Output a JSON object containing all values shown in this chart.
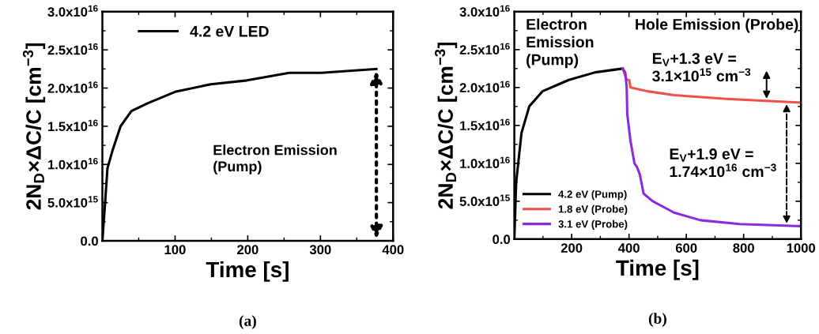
{
  "chart_data": [
    {
      "type": "line",
      "title": "(a)",
      "xlabel": "Time [s]",
      "ylabel": "2N$_{D}$×ΔC/C [cm$^{−3}$]",
      "xlim": [
        0,
        400
      ],
      "xticks": [
        100,
        200,
        300,
        400
      ],
      "ylim": [
        0,
        3e+16
      ],
      "yticks": [
        {
          "value": 0,
          "label": "0.0"
        },
        {
          "value": 5000000000000000.0,
          "label": "5.0x10$^{15}$"
        },
        {
          "value": 1e+16,
          "label": "1.0x10$^{16}$"
        },
        {
          "value": 1.5e+16,
          "label": "1.5x10$^{16}$"
        },
        {
          "value": 2e+16,
          "label": "2.0x10$^{16}$"
        },
        {
          "value": 2.5e+16,
          "label": "2.5x10$^{16}$"
        },
        {
          "value": 3e+16,
          "label": "3.0x10$^{16}$"
        }
      ],
      "legend": "top",
      "grid": false,
      "marker": "none",
      "line_style": "solid",
      "annotations": [
        "Electron Emission\n(Pump)"
      ],
      "series": [
        {
          "name": "4.2 eV LED",
          "color": "#000000",
          "x": [
            0,
            3.6,
            7,
            14.5,
            25,
            40,
            62,
            100,
            149,
            199,
            257,
            301,
            377
          ],
          "values": [
            0,
            4800000000000000.0,
            9500000000000000.0,
            1.2e+16,
            1.5e+16,
            1.7e+16,
            1.8e+16,
            1.95e+16,
            2.05e+16,
            2.1e+16,
            2.2e+16,
            2.2e+16,
            2.25e+16
          ]
        }
      ]
    },
    {
      "type": "line",
      "title": "(b)",
      "xlabel": "Time [s]",
      "ylabel": "2N$_{D}$×ΔC/C [cm$^{−3}$]",
      "xlim": [
        0,
        1000
      ],
      "xticks": [
        200,
        400,
        600,
        800,
        1000
      ],
      "ylim": [
        0,
        3e+16
      ],
      "yticks": [
        {
          "value": 0,
          "label": "0.0"
        },
        {
          "value": 5000000000000000.0,
          "label": "5.0x10$^{15}$"
        },
        {
          "value": 1e+16,
          "label": "1.0x10$^{16}$"
        },
        {
          "value": 1.5e+16,
          "label": "1.5x10$^{16}$"
        },
        {
          "value": 2e+16,
          "label": "2.0x10$^{16}$"
        },
        {
          "value": 2.5e+16,
          "label": "2.5x10$^{16}$"
        },
        {
          "value": 3e+16,
          "label": "3.0x10$^{16}$"
        }
      ],
      "legend": "bottom left",
      "grid": false,
      "marker": "none",
      "line_style": "solid",
      "annotations": [
        "Electron\nEmission\n(Pump)",
        "Hole Emission (Probe)",
        "E$_{V}$+1.3 eV =\n3.1×10$^{15}$ cm$^{−3}$",
        "E$_{V}$+1.9 eV =\n1.74×10$^{16}$ cm$^{−3}$"
      ],
      "series": [
        {
          "name": "4.2 eV (Pump)",
          "color": "#000000",
          "x": [
            0,
            6.4,
            25,
            52,
            98,
            190,
            282,
            378
          ],
          "values": [
            0,
            7500000000000000.0,
            1.4e+16,
            1.75e+16,
            1.95e+16,
            2.1e+16,
            2.2e+16,
            2.25e+16
          ]
        },
        {
          "name": "1.8 eV (Probe)",
          "color": "#f0504a",
          "x": [
            378,
            392,
            401,
            405,
            465,
            557,
            740,
            1000
          ],
          "values": [
            2.25e+16,
            2.1e+16,
            2.1e+16,
            2e+16,
            1.95e+16,
            1.9e+16,
            1.85e+16,
            1.8e+16
          ]
        },
        {
          "name": "3.1 eV (Probe)",
          "color": "#8a2be2",
          "x": [
            378,
            387,
            392,
            394,
            405,
            419,
            428,
            438,
            451,
            483,
            557,
            649,
            786,
            1000
          ],
          "values": [
            2.25e+16,
            2.2e+16,
            2e+16,
            1.65e+16,
            1.3e+16,
            1e+16,
            9500000000000000.0,
            8500000000000000.0,
            6000000000000000.0,
            5000000000000000.0,
            3500000000000000.0,
            2500000000000000.0,
            2000000000000000.0,
            1700000000000000.0
          ]
        }
      ]
    }
  ]
}
